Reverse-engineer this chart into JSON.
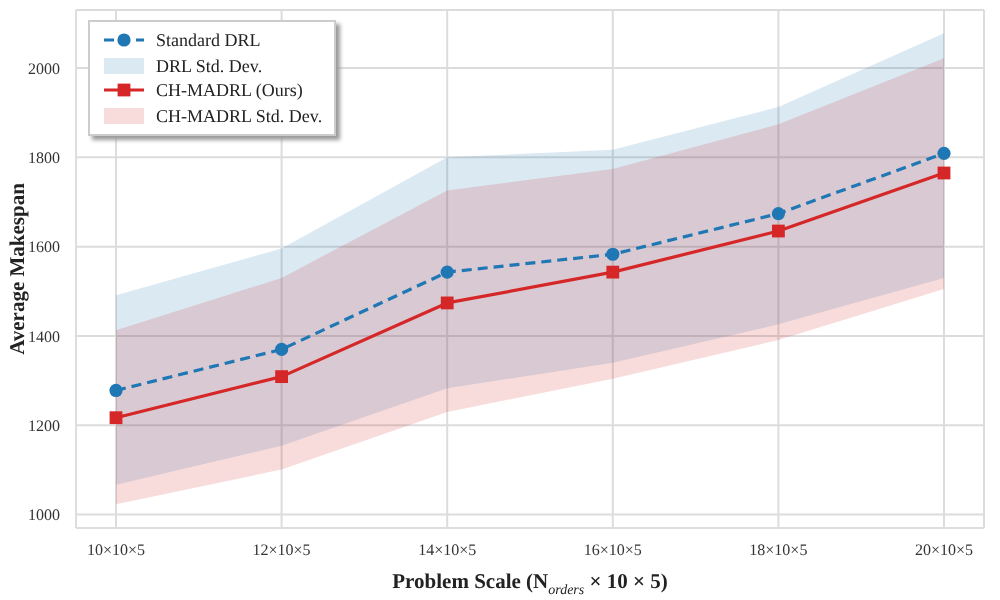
{
  "chart_data": {
    "type": "line",
    "xlabel": "Problem Scale (N$_{orders}$ × 10 × 5)",
    "ylabel": "Average Makespan",
    "categories": [
      "10×10×5",
      "12×10×5",
      "14×10×5",
      "16×10×5",
      "18×10×5",
      "20×10×5"
    ],
    "series": [
      {
        "name": "Standard DRL",
        "color": "#1f77b4",
        "marker": "circle",
        "line_style": "dashed",
        "values": [
          1278,
          1370,
          1543,
          1583,
          1674,
          1809
        ],
        "lower": [
          1067,
          1154,
          1283,
          1340,
          1426,
          1530
        ],
        "upper": [
          1491,
          1596,
          1800,
          1817,
          1913,
          2078
        ]
      },
      {
        "name": "CH-MADRL (Ours)",
        "color": "#d62728",
        "marker": "square",
        "line_style": "solid",
        "values": [
          1217,
          1309,
          1474,
          1543,
          1635,
          1765
        ],
        "lower": [
          1023,
          1101,
          1230,
          1304,
          1391,
          1505
        ],
        "upper": [
          1413,
          1530,
          1726,
          1774,
          1874,
          2022
        ]
      }
    ],
    "annotations": [
      "DRL Std. Dev.",
      "CH-MADRL Std. Dev."
    ],
    "ylim": [
      970,
      2130
    ],
    "yticks": [
      1000,
      1200,
      1400,
      1600,
      1800,
      2000
    ],
    "grid": true,
    "legend": "top left"
  }
}
